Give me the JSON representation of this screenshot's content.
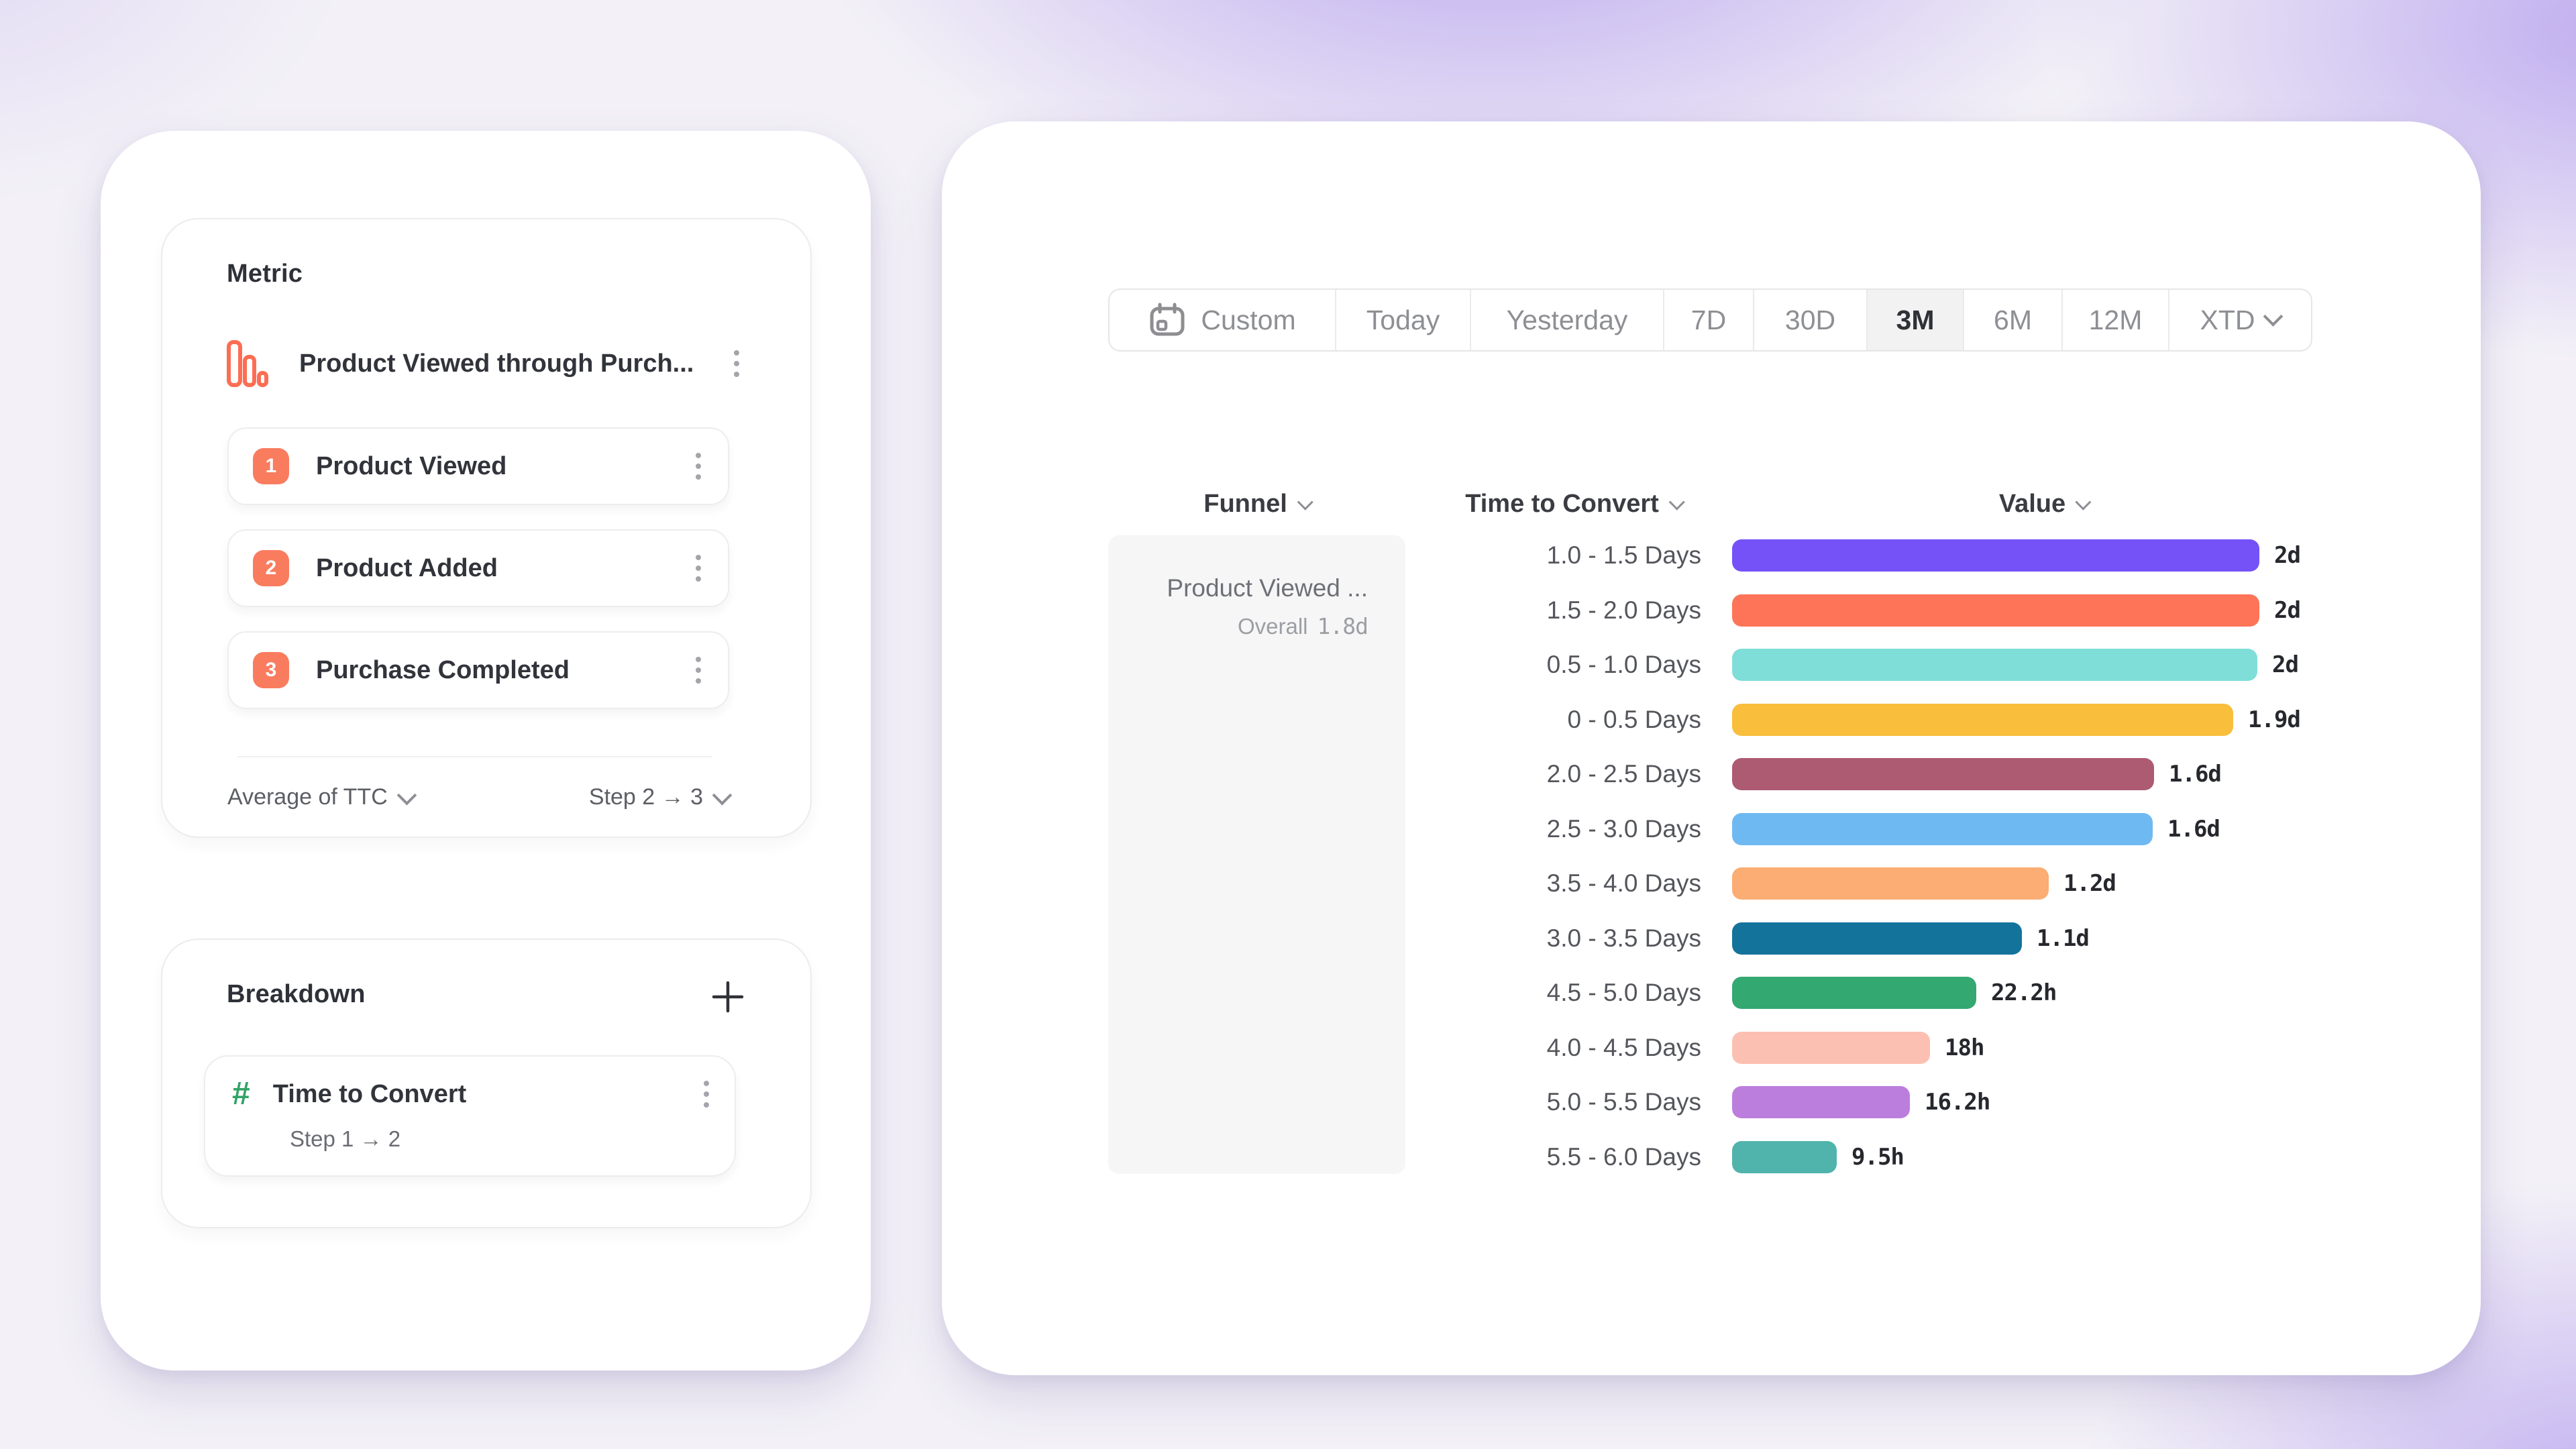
{
  "builder": {
    "metric_section": {
      "title": "Metric",
      "metric": {
        "icon": "funnel-chart-icon",
        "name": "Product Viewed through Purch...",
        "steps": [
          {
            "number": "1",
            "label": "Product Viewed"
          },
          {
            "number": "2",
            "label": "Product Added"
          },
          {
            "number": "3",
            "label": "Purchase Completed"
          }
        ],
        "aggregation": "Average of TTC",
        "step_range": "Step 2 → 3"
      }
    },
    "breakdown_section": {
      "title": "Breakdown",
      "add_icon": "plus-icon",
      "item": {
        "icon": "hash-icon",
        "label": "Time to Convert",
        "sublabel": "Step 1 → 2"
      }
    }
  },
  "report": {
    "date_range_tabs": [
      {
        "label": "Custom",
        "icon": "calendar-icon"
      },
      {
        "label": "Today"
      },
      {
        "label": "Yesterday"
      },
      {
        "label": "7D"
      },
      {
        "label": "30D"
      },
      {
        "label": "3M",
        "selected": true
      },
      {
        "label": "6M"
      },
      {
        "label": "12M"
      },
      {
        "label": "XTD",
        "chevron": true
      }
    ],
    "columns": {
      "funnel": "Funnel",
      "time_to_convert": "Time to Convert",
      "value": "Value"
    },
    "funnel_panel": {
      "name": "Product Viewed ...",
      "overall_label": "Overall",
      "overall_value": "1.8d"
    }
  },
  "chart_data": {
    "type": "bar",
    "orientation": "horizontal",
    "title": "Time to Convert breakdown of Product Viewed funnel",
    "xlabel": "Value",
    "ylabel": "Time to Convert",
    "xmax_hours": 48,
    "grid": false,
    "legend": "none",
    "categories": [
      "1.0 - 1.5 Days",
      "1.5 - 2.0 Days",
      "0.5 - 1.0 Days",
      "0 - 0.5 Days",
      "2.0 - 2.5 Days",
      "2.5 - 3.0 Days",
      "3.5 - 4.0 Days",
      "3.0 - 3.5 Days",
      "4.5 - 5.0 Days",
      "4.0 - 4.5 Days",
      "5.0 - 5.5 Days",
      "5.5 - 6.0 Days"
    ],
    "values_hours": [
      48,
      48,
      47.8,
      45.6,
      38.4,
      38.3,
      28.8,
      26.4,
      22.2,
      18,
      16.2,
      9.5
    ],
    "value_labels": [
      "2d",
      "2d",
      "2d",
      "1.9d",
      "1.6d",
      "1.6d",
      "1.2d",
      "1.1d",
      "22.2h",
      "18h",
      "16.2h",
      "9.5h"
    ],
    "colors": [
      "#7452F8",
      "#FD7458",
      "#7FDED8",
      "#F8BE3C",
      "#AC5B72",
      "#6FB9F2",
      "#FBAD73",
      "#13739A",
      "#34A871",
      "#FCC0B2",
      "#BC7EDC",
      "#50B3AC"
    ]
  },
  "colors": {
    "accent_coral": "#F97C5F",
    "accent_green": "#31A366",
    "selected_tab_bg": "#F2F2F3",
    "panel_bg": "#F6F6F7",
    "text_dark": "#2E3138",
    "text_gray": "#8E8F94"
  }
}
